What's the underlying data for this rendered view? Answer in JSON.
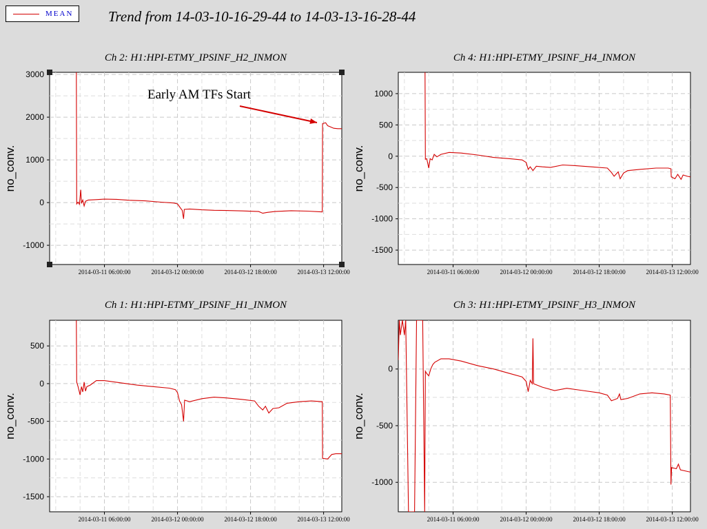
{
  "legend": {
    "label": "MEAN",
    "line_color": "#d40000"
  },
  "title": "Trend from 14-03-10-16-29-44 to 14-03-13-16-28-44",
  "chart_data": [
    {
      "type": "line",
      "title": "Ch 2: H1:HPI-ETMY_IPSINF_H2_INMON",
      "ylabel": "no_conv.",
      "xlabel": "",
      "xlim": [
        "2014-03-10 16:29:44",
        "2014-03-13 16:28:44"
      ],
      "ylim": [
        -1450,
        3050
      ],
      "yticks": [
        3000,
        2000,
        1000,
        0,
        -1000
      ],
      "xticks": [
        "2014-03-11 06:00:00",
        "2014-03-12 00:00:00",
        "2014-03-12 18:00:00",
        "2014-03-13 12:00:00"
      ],
      "grid": true,
      "annotation": "Early AM TFs Start",
      "series": [
        {
          "name": "MEAN",
          "color": "#d40000",
          "points": [
            [
              "2014-03-10 16:29:44",
              null
            ],
            [
              "2014-03-10 23:00:00",
              3050
            ],
            [
              "2014-03-10 23:05:00",
              3050
            ],
            [
              "2014-03-10 23:10:00",
              -30
            ],
            [
              "2014-03-10 23:30:00",
              10
            ],
            [
              "2014-03-10 23:50:00",
              -40
            ],
            [
              "2014-03-11 00:10:00",
              300
            ],
            [
              "2014-03-11 00:20:00",
              -20
            ],
            [
              "2014-03-11 00:40:00",
              60
            ],
            [
              "2014-03-11 01:00:00",
              -80
            ],
            [
              "2014-03-11 01:20:00",
              30
            ],
            [
              "2014-03-11 02:00:00",
              60
            ],
            [
              "2014-03-11 04:00:00",
              70
            ],
            [
              "2014-03-11 06:00:00",
              80
            ],
            [
              "2014-03-11 09:00:00",
              75
            ],
            [
              "2014-03-11 12:00:00",
              55
            ],
            [
              "2014-03-11 16:00:00",
              40
            ],
            [
              "2014-03-11 20:00:00",
              10
            ],
            [
              "2014-03-11 23:00:00",
              -10
            ],
            [
              "2014-03-12 00:00:00",
              -30
            ],
            [
              "2014-03-12 00:40:00",
              -120
            ],
            [
              "2014-03-12 01:10:00",
              -180
            ],
            [
              "2014-03-12 01:30:00",
              -380
            ],
            [
              "2014-03-12 01:40:00",
              -160
            ],
            [
              "2014-03-12 03:00:00",
              -150
            ],
            [
              "2014-03-12 06:00:00",
              -170
            ],
            [
              "2014-03-12 09:00:00",
              -180
            ],
            [
              "2014-03-12 12:00:00",
              -185
            ],
            [
              "2014-03-12 16:00:00",
              -195
            ],
            [
              "2014-03-12 20:00:00",
              -210
            ],
            [
              "2014-03-12 21:00:00",
              -250
            ],
            [
              "2014-03-12 22:00:00",
              -230
            ],
            [
              "2014-03-13 00:00:00",
              -210
            ],
            [
              "2014-03-13 04:00:00",
              -190
            ],
            [
              "2014-03-13 08:00:00",
              -200
            ],
            [
              "2014-03-13 11:00:00",
              -215
            ],
            [
              "2014-03-13 11:40:00",
              -220
            ],
            [
              "2014-03-13 11:45:00",
              1850
            ],
            [
              "2014-03-13 12:30:00",
              1870
            ],
            [
              "2014-03-13 13:00:00",
              1800
            ],
            [
              "2014-03-13 13:30:00",
              1780
            ],
            [
              "2014-03-13 14:30:00",
              1740
            ],
            [
              "2014-03-13 15:30:00",
              1730
            ],
            [
              "2014-03-13 16:28:44",
              1730
            ]
          ]
        }
      ]
    },
    {
      "type": "line",
      "title": "Ch 4: H1:HPI-ETMY_IPSINF_H4_INMON",
      "ylabel": "no_conv.",
      "xlabel": "",
      "xlim": [
        "2014-03-10 16:29:44",
        "2014-03-13 16:28:44"
      ],
      "ylim": [
        -1730,
        1340
      ],
      "yticks": [
        1000,
        500,
        0,
        -500,
        -1000,
        -1500
      ],
      "xticks": [
        "2014-03-11 06:00:00",
        "2014-03-12 00:00:00",
        "2014-03-12 18:00:00",
        "2014-03-13 12:00:00"
      ],
      "grid": true,
      "series": [
        {
          "name": "MEAN",
          "color": "#d40000",
          "points": [
            [
              "2014-03-10 23:00:00",
              1340
            ],
            [
              "2014-03-10 23:05:00",
              1340
            ],
            [
              "2014-03-10 23:10:00",
              -50
            ],
            [
              "2014-03-10 23:30:00",
              -40
            ],
            [
              "2014-03-11 00:00:00",
              -190
            ],
            [
              "2014-03-11 00:20:00",
              -40
            ],
            [
              "2014-03-11 00:50:00",
              -60
            ],
            [
              "2014-03-11 01:20:00",
              30
            ],
            [
              "2014-03-11 02:00:00",
              -10
            ],
            [
              "2014-03-11 03:00:00",
              30
            ],
            [
              "2014-03-11 05:00:00",
              60
            ],
            [
              "2014-03-11 08:00:00",
              50
            ],
            [
              "2014-03-11 12:00:00",
              20
            ],
            [
              "2014-03-11 16:00:00",
              -20
            ],
            [
              "2014-03-11 20:00:00",
              -40
            ],
            [
              "2014-03-11 23:00:00",
              -60
            ],
            [
              "2014-03-12 00:00:00",
              -100
            ],
            [
              "2014-03-12 00:30:00",
              -210
            ],
            [
              "2014-03-12 01:00:00",
              -170
            ],
            [
              "2014-03-12 01:40:00",
              -230
            ],
            [
              "2014-03-12 02:30:00",
              -160
            ],
            [
              "2014-03-12 04:00:00",
              -170
            ],
            [
              "2014-03-12 06:00:00",
              -180
            ],
            [
              "2014-03-12 09:00:00",
              -140
            ],
            [
              "2014-03-12 12:00:00",
              -150
            ],
            [
              "2014-03-12 16:00:00",
              -170
            ],
            [
              "2014-03-12 20:00:00",
              -190
            ],
            [
              "2014-03-12 21:00:00",
              -260
            ],
            [
              "2014-03-12 21:40:00",
              -320
            ],
            [
              "2014-03-12 22:40:00",
              -250
            ],
            [
              "2014-03-12 23:10:00",
              -360
            ],
            [
              "2014-03-13 00:00:00",
              -270
            ],
            [
              "2014-03-13 01:00:00",
              -230
            ],
            [
              "2014-03-13 04:00:00",
              -210
            ],
            [
              "2014-03-13 08:00:00",
              -190
            ],
            [
              "2014-03-13 11:00:00",
              -190
            ],
            [
              "2014-03-13 11:40:00",
              -200
            ],
            [
              "2014-03-13 11:45:00",
              -330
            ],
            [
              "2014-03-13 12:40:00",
              -360
            ],
            [
              "2014-03-13 13:20:00",
              -290
            ],
            [
              "2014-03-13 14:10:00",
              -370
            ],
            [
              "2014-03-13 14:40:00",
              -300
            ],
            [
              "2014-03-13 15:40:00",
              -320
            ],
            [
              "2014-03-13 16:28:44",
              -330
            ]
          ]
        }
      ]
    },
    {
      "type": "line",
      "title": "Ch 1: H1:HPI-ETMY_IPSINF_H1_INMON",
      "ylabel": "no_conv.",
      "xlabel": "",
      "xlim": [
        "2014-03-10 16:29:44",
        "2014-03-13 16:28:44"
      ],
      "ylim": [
        -1700,
        840
      ],
      "yticks": [
        500,
        0,
        -500,
        -1000,
        -1500
      ],
      "xticks": [
        "2014-03-11 06:00:00",
        "2014-03-12 00:00:00",
        "2014-03-12 18:00:00",
        "2014-03-13 12:00:00"
      ],
      "grid": true,
      "series": [
        {
          "name": "MEAN",
          "color": "#d40000",
          "points": [
            [
              "2014-03-10 23:00:00",
              840
            ],
            [
              "2014-03-10 23:05:00",
              840
            ],
            [
              "2014-03-10 23:10:00",
              20
            ],
            [
              "2014-03-10 23:30:00",
              -40
            ],
            [
              "2014-03-11 00:00:00",
              -150
            ],
            [
              "2014-03-11 00:20:00",
              -40
            ],
            [
              "2014-03-11 00:40:00",
              -110
            ],
            [
              "2014-03-11 01:00:00",
              20
            ],
            [
              "2014-03-11 01:20:00",
              -100
            ],
            [
              "2014-03-11 01:40:00",
              -40
            ],
            [
              "2014-03-11 02:30:00",
              -20
            ],
            [
              "2014-03-11 04:00:00",
              40
            ],
            [
              "2014-03-11 06:00:00",
              40
            ],
            [
              "2014-03-11 10:00:00",
              10
            ],
            [
              "2014-03-11 14:00:00",
              -20
            ],
            [
              "2014-03-11 18:00:00",
              -40
            ],
            [
              "2014-03-11 22:00:00",
              -60
            ],
            [
              "2014-03-11 23:30:00",
              -80
            ],
            [
              "2014-03-12 00:00:00",
              -120
            ],
            [
              "2014-03-12 00:30:00",
              -230
            ],
            [
              "2014-03-12 01:00:00",
              -280
            ],
            [
              "2014-03-12 01:30:00",
              -500
            ],
            [
              "2014-03-12 01:45:00",
              -220
            ],
            [
              "2014-03-12 03:00:00",
              -240
            ],
            [
              "2014-03-12 06:00:00",
              -200
            ],
            [
              "2014-03-12 09:00:00",
              -180
            ],
            [
              "2014-03-12 12:00:00",
              -190
            ],
            [
              "2014-03-12 16:00:00",
              -210
            ],
            [
              "2014-03-12 19:00:00",
              -230
            ],
            [
              "2014-03-12 20:00:00",
              -300
            ],
            [
              "2014-03-12 21:00:00",
              -350
            ],
            [
              "2014-03-12 21:40:00",
              -300
            ],
            [
              "2014-03-12 22:30:00",
              -390
            ],
            [
              "2014-03-12 23:30:00",
              -330
            ],
            [
              "2014-03-13 01:00:00",
              -320
            ],
            [
              "2014-03-13 03:00:00",
              -260
            ],
            [
              "2014-03-13 06:00:00",
              -240
            ],
            [
              "2014-03-13 09:00:00",
              -230
            ],
            [
              "2014-03-13 11:40:00",
              -240
            ],
            [
              "2014-03-13 11:45:00",
              -990
            ],
            [
              "2014-03-13 13:00:00",
              -1000
            ],
            [
              "2014-03-13 14:00:00",
              -940
            ],
            [
              "2014-03-13 15:00:00",
              -930
            ],
            [
              "2014-03-13 16:28:44",
              -930
            ]
          ]
        }
      ]
    },
    {
      "type": "line",
      "title": "Ch 3: H1:HPI-ETMY_IPSINF_H3_INMON",
      "ylabel": "no_conv.",
      "xlabel": "",
      "xlim": [
        "2014-03-10 16:29:44",
        "2014-03-13 16:28:44"
      ],
      "ylim": [
        -1260,
        430
      ],
      "yticks": [
        0,
        -500,
        -1000
      ],
      "xticks": [
        "2014-03-11 06:00:00",
        "2014-03-12 00:00:00",
        "2014-03-12 18:00:00",
        "2014-03-13 12:00:00"
      ],
      "grid": true,
      "series": [
        {
          "name": "MEAN",
          "color": "#d40000",
          "points": [
            [
              "2014-03-10 16:29:44",
              80
            ],
            [
              "2014-03-10 16:45:00",
              430
            ],
            [
              "2014-03-10 17:00:00",
              300
            ],
            [
              "2014-03-10 17:30:00",
              430
            ],
            [
              "2014-03-10 18:00:00",
              300
            ],
            [
              "2014-03-10 18:20:00",
              430
            ],
            [
              "2014-03-10 19:00:00",
              -1260
            ],
            [
              "2014-03-10 20:30:00",
              -1260
            ],
            [
              "2014-03-10 21:00:00",
              430
            ],
            [
              "2014-03-10 22:30:00",
              430
            ],
            [
              "2014-03-10 23:00:00",
              -1260
            ],
            [
              "2014-03-10 23:10:00",
              -20
            ],
            [
              "2014-03-10 23:30:00",
              -40
            ],
            [
              "2014-03-11 00:00:00",
              -60
            ],
            [
              "2014-03-11 00:30:00",
              0
            ],
            [
              "2014-03-11 01:00:00",
              40
            ],
            [
              "2014-03-11 01:30:00",
              60
            ],
            [
              "2014-03-11 03:00:00",
              90
            ],
            [
              "2014-03-11 05:00:00",
              90
            ],
            [
              "2014-03-11 08:00:00",
              70
            ],
            [
              "2014-03-11 12:00:00",
              30
            ],
            [
              "2014-03-11 16:00:00",
              0
            ],
            [
              "2014-03-11 20:00:00",
              -40
            ],
            [
              "2014-03-11 23:00:00",
              -70
            ],
            [
              "2014-03-12 00:00:00",
              -110
            ],
            [
              "2014-03-12 00:30:00",
              -200
            ],
            [
              "2014-03-12 01:00:00",
              -100
            ],
            [
              "2014-03-12 01:30:00",
              -130
            ],
            [
              "2014-03-12 01:40:00",
              270
            ],
            [
              "2014-03-12 01:50:00",
              -130
            ],
            [
              "2014-03-12 04:00:00",
              -160
            ],
            [
              "2014-03-12 07:00:00",
              -190
            ],
            [
              "2014-03-12 10:00:00",
              -170
            ],
            [
              "2014-03-12 14:00:00",
              -190
            ],
            [
              "2014-03-12 18:00:00",
              -210
            ],
            [
              "2014-03-12 20:00:00",
              -230
            ],
            [
              "2014-03-12 21:00:00",
              -280
            ],
            [
              "2014-03-12 22:30:00",
              -260
            ],
            [
              "2014-03-12 23:00:00",
              -220
            ],
            [
              "2014-03-12 23:20:00",
              -270
            ],
            [
              "2014-03-13 01:00:00",
              -260
            ],
            [
              "2014-03-13 04:00:00",
              -220
            ],
            [
              "2014-03-13 07:00:00",
              -210
            ],
            [
              "2014-03-13 10:00:00",
              -220
            ],
            [
              "2014-03-13 11:30:00",
              -230
            ],
            [
              "2014-03-13 11:40:00",
              -1020
            ],
            [
              "2014-03-13 11:50:00",
              -870
            ],
            [
              "2014-03-13 13:00:00",
              -880
            ],
            [
              "2014-03-13 13:30:00",
              -840
            ],
            [
              "2014-03-13 14:00:00",
              -890
            ],
            [
              "2014-03-13 16:28:44",
              -910
            ]
          ]
        }
      ]
    }
  ]
}
